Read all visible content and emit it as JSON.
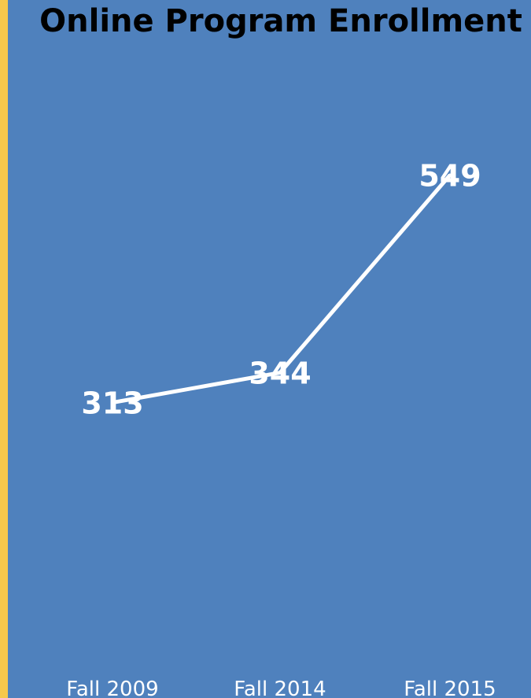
{
  "chart_data": {
    "type": "line",
    "title": "Online Program Enrollment",
    "categories": [
      "Fall 2009",
      "Fall 2014",
      "Fall 2015"
    ],
    "series": [
      {
        "values": [
          313,
          344,
          549
        ]
      }
    ],
    "data_labels": [
      "313",
      "344",
      "549"
    ],
    "ylim": [
      0,
      600
    ],
    "grid": false,
    "legend": "none",
    "colors": {
      "background": "#4f81bd",
      "frame": "#f6c84c",
      "line": "#ffffff",
      "text": "#ffffff",
      "title": "#000000"
    }
  }
}
